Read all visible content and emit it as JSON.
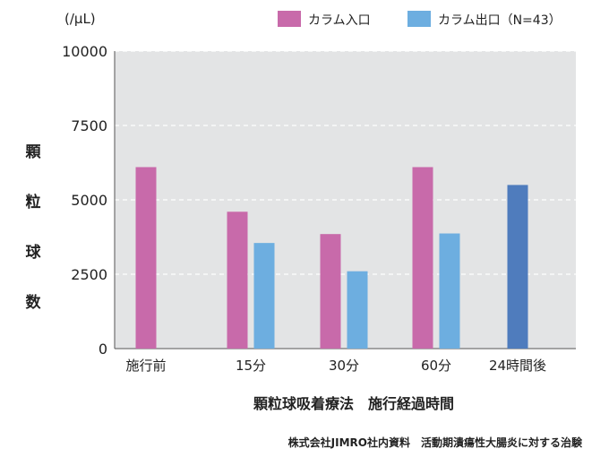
{
  "chart_data": {
    "type": "bar",
    "unit_label": "(/μL)",
    "ylabel": "顆粒球数",
    "xlabel": "顆粒球吸着療法　施行経過時間",
    "source": "株式会社JIMRO社内資料　活動期潰瘍性大腸炎に対する治験",
    "ylim": [
      0,
      10000
    ],
    "yticks": [
      "0",
      "2500",
      "5000",
      "7500",
      "10000"
    ],
    "grid": true,
    "legend_position": "top-right",
    "categories": [
      "施行前",
      "15分",
      "30分",
      "60分",
      "24時間後"
    ],
    "series": [
      {
        "name": "カラム入口",
        "color": "#c86aaa",
        "values": [
          6100,
          4600,
          3850,
          6100,
          null
        ]
      },
      {
        "name": "カラム出口（N=43）",
        "color": "#6daee0",
        "values": [
          null,
          3550,
          2600,
          3870,
          null
        ]
      }
    ],
    "extra_bars": [
      {
        "category": "24時間後",
        "value": 5500,
        "color": "#4f7cbd"
      }
    ],
    "plot_background": "#e3e4e5"
  }
}
